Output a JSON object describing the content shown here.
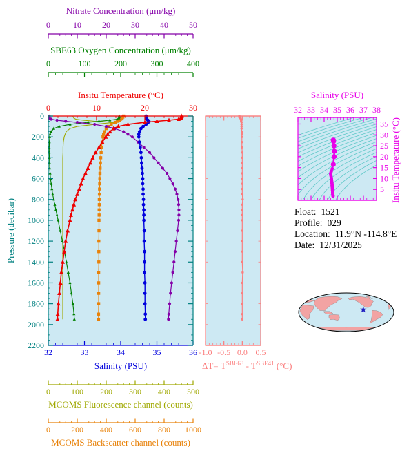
{
  "colors": {
    "nitrate": "#8400A8",
    "oxygen": "#008000",
    "temperature": "#EE0000",
    "salinity": "#0000DD",
    "pressure": "#008080",
    "fluorescence": "#9FA800",
    "backscatter": "#E8820A",
    "delta_t": "#FB7E7E",
    "ts": "#E800E8",
    "contours": "#5FC8C8",
    "plot_bg": "#CDE9F3",
    "land": "#F2A3A3",
    "star": "#2020C0"
  },
  "axes": {
    "nitrate": {
      "title": "Nitrate Concentration (μm/kg)",
      "min": 0,
      "max": 50,
      "ticks": [
        0,
        10,
        20,
        30,
        40,
        50
      ]
    },
    "oxygen": {
      "title": "SBE63 Oxygen Concentration (μm/kg)",
      "min": 0,
      "max": 400,
      "ticks": [
        0,
        100,
        200,
        300,
        400
      ]
    },
    "temperature": {
      "title": "Insitu Temperature (°C)",
      "min": 0,
      "max": 30,
      "ticks": [
        0,
        10,
        20,
        30
      ]
    },
    "pressure": {
      "title": "Pressure (decibar)",
      "min": 0,
      "max": 2200,
      "ticks": [
        0,
        200,
        400,
        600,
        800,
        1000,
        1200,
        1400,
        1600,
        1800,
        2000,
        2200
      ]
    },
    "salinity": {
      "title": "Salinity (PSU)",
      "min": 32,
      "max": 36,
      "ticks": [
        32,
        33,
        34,
        35,
        36
      ]
    },
    "fluorescence": {
      "title": "MCOMS Fluorescence channel (counts)",
      "min": 0,
      "max": 500,
      "ticks": [
        0,
        100,
        200,
        300,
        400,
        500
      ]
    },
    "backscatter": {
      "title": "MCOMS Backscatter channel (counts)",
      "min": 0,
      "max": 1000,
      "ticks": [
        0,
        200,
        400,
        600,
        800,
        1000
      ]
    },
    "delta_t": {
      "title_parts": {
        "pre": "ΔT= T",
        "sup1": "SBE63",
        "mid": " - T",
        "sup2": "SBE41",
        "post": " (°C)"
      },
      "min": -1.0,
      "max": 0.5,
      "ticks": [
        -1.0,
        -0.5,
        0.0,
        0.5
      ]
    },
    "ts_salinity": {
      "title": "Salinity (PSU)",
      "min": 32,
      "max": 38,
      "ticks": [
        32,
        33,
        34,
        35,
        36,
        37,
        38
      ]
    },
    "ts_temperature": {
      "title": "Insitu Temperature (°C)",
      "min": 0,
      "max": 38,
      "ticks": [
        5,
        10,
        15,
        20,
        25,
        30,
        35
      ]
    }
  },
  "info": {
    "float_label": "Float:",
    "float_value": "1521",
    "profile_label": "Profile:",
    "profile_value": "029",
    "location_label": "Location:",
    "location_value": "11.9°N -114.8°E",
    "date_label": "Date:",
    "date_value": "12/31/2025"
  },
  "map": {
    "marker_lat": 11.9,
    "marker_lon": -114.8
  },
  "chart_data": {
    "type": "line",
    "title": "Float 1521 profile 029 vertical profiles",
    "ylabel": "Pressure (decibar)",
    "ylim": [
      0,
      2200
    ],
    "y_inverted": true,
    "grid": false,
    "pressure": [
      0,
      10,
      20,
      30,
      40,
      50,
      60,
      80,
      100,
      120,
      150,
      175,
      200,
      250,
      300,
      350,
      400,
      450,
      500,
      550,
      600,
      650,
      700,
      750,
      800,
      850,
      900,
      950,
      1000,
      1100,
      1200,
      1300,
      1400,
      1500,
      1600,
      1700,
      1800,
      1900,
      1950
    ],
    "series": [
      {
        "name": "Insitu Temperature",
        "units": "°C",
        "xlim": [
          0,
          30
        ],
        "color_key": "temperature",
        "values": [
          27.6,
          27.6,
          27.5,
          27.0,
          25.0,
          22.5,
          20.0,
          16.5,
          14.5,
          13.5,
          12.8,
          12.3,
          11.9,
          11.2,
          10.5,
          9.8,
          9.2,
          8.7,
          8.2,
          7.7,
          7.2,
          6.8,
          6.4,
          6.0,
          5.6,
          5.3,
          5.0,
          4.7,
          4.5,
          4.0,
          3.6,
          3.3,
          3.0,
          2.7,
          2.5,
          2.3,
          2.1,
          1.95,
          1.9
        ]
      },
      {
        "name": "Salinity",
        "units": "PSU",
        "xlim": [
          32,
          36
        ],
        "color_key": "salinity",
        "values": [
          34.7,
          34.7,
          34.71,
          34.72,
          34.75,
          34.78,
          34.76,
          34.7,
          34.62,
          34.56,
          34.52,
          34.5,
          34.5,
          34.52,
          34.54,
          34.56,
          34.57,
          34.58,
          34.59,
          34.6,
          34.61,
          34.61,
          34.62,
          34.62,
          34.63,
          34.63,
          34.64,
          34.64,
          34.64,
          34.65,
          34.65,
          34.66,
          34.66,
          34.66,
          34.67,
          34.67,
          34.67,
          34.68,
          34.68
        ]
      },
      {
        "name": "SBE63 Oxygen Concentration",
        "units": "μm/kg",
        "xlim": [
          0,
          400
        ],
        "color_key": "oxygen",
        "values": [
          196,
          196,
          195,
          190,
          170,
          140,
          110,
          60,
          30,
          15,
          8,
          5,
          4,
          3,
          2.5,
          2.5,
          3,
          3.5,
          4,
          5,
          6,
          8,
          10,
          12,
          15,
          18,
          21,
          24,
          27,
          33,
          39,
          45,
          50,
          55,
          60,
          64,
          68,
          71,
          72
        ]
      },
      {
        "name": "Nitrate Concentration",
        "units": "μm/kg",
        "xlim": [
          0,
          50
        ],
        "color_key": "nitrate",
        "values": [
          0.3,
          0.3,
          0.4,
          1.0,
          3.0,
          6.0,
          10,
          16,
          20,
          23,
          26,
          27.5,
          29,
          31,
          33,
          35,
          36.5,
          38,
          39.5,
          41,
          42,
          43,
          43.8,
          44.4,
          44.8,
          45,
          45.1,
          45.1,
          45,
          44.6,
          44.2,
          43.8,
          43.4,
          43,
          42.6,
          42.2,
          41.9,
          41.6,
          41.5
        ]
      },
      {
        "name": "MCOMS Fluorescence channel",
        "units": "counts",
        "xlim": [
          0,
          500
        ],
        "color_key": "fluorescence",
        "values": [
          85,
          86,
          88,
          95,
          120,
          160,
          230,
          160,
          100,
          75,
          62,
          58,
          55,
          52,
          51,
          51,
          50,
          50,
          50,
          50,
          50,
          50,
          50,
          50,
          50,
          50,
          50,
          50,
          50,
          50,
          50,
          50,
          50,
          50,
          50,
          50,
          50,
          50,
          50
        ]
      },
      {
        "name": "MCOMS Backscatter channel",
        "units": "counts",
        "xlim": [
          0,
          1000
        ],
        "color_key": "backscatter",
        "values": [
          520,
          515,
          510,
          500,
          490,
          478,
          462,
          435,
          415,
          400,
          388,
          382,
          378,
          372,
          368,
          365,
          362,
          360,
          358,
          357,
          356,
          355,
          354,
          353,
          352,
          352,
          351,
          351,
          350,
          350,
          349,
          349,
          349,
          348,
          348,
          348,
          348,
          347,
          347
        ]
      }
    ],
    "delta_t": {
      "name": "ΔT = T(SBE63) - T(SBE41)",
      "units": "°C",
      "xlim": [
        -1.0,
        0.5
      ],
      "values": [
        -0.08,
        -0.06,
        -0.05,
        -0.04,
        -0.03,
        -0.03,
        -0.02,
        -0.02,
        -0.02,
        -0.02,
        -0.01,
        -0.01,
        -0.01,
        -0.01,
        -0.01,
        0,
        0,
        0,
        0,
        0,
        0,
        0,
        0,
        0,
        0.01,
        0,
        0,
        0,
        0,
        0,
        0,
        0,
        0,
        0.01,
        0,
        0,
        0,
        0,
        0
      ]
    },
    "ts_diagram": {
      "type": "scatter",
      "xlabel": "Salinity (PSU)",
      "xlim": [
        32,
        38
      ],
      "ylabel": "Insitu Temperature (°C)",
      "ylim": [
        0,
        38
      ],
      "note_series": "temperature vs salinity from the profile series, isopycnal contours in background"
    }
  }
}
